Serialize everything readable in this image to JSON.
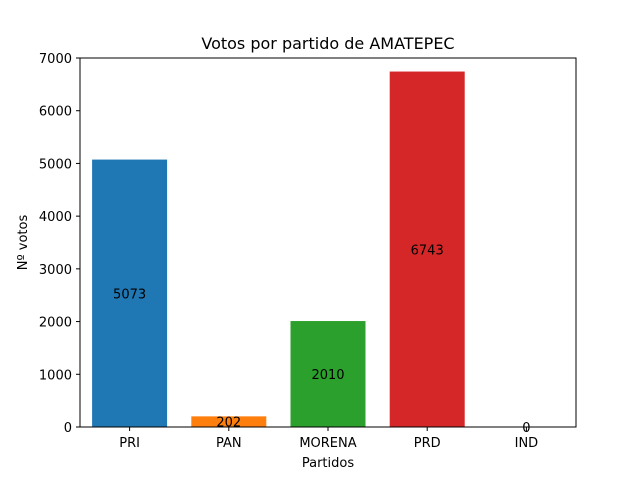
{
  "chart_data": {
    "type": "bar",
    "title": "Votos por partido de AMATEPEC",
    "xlabel": "Partidos",
    "ylabel": "Nº votos",
    "categories": [
      "PRI",
      "PAN",
      "MORENA",
      "PRD",
      "IND"
    ],
    "values": [
      5073,
      202,
      2010,
      6743,
      0
    ],
    "data_labels": [
      "5073",
      "202",
      "2010",
      "6743",
      "0"
    ],
    "colors": [
      "#1f77b4",
      "#ff7f0e",
      "#2ca02c",
      "#d62728",
      "#9467bd"
    ],
    "ylim": [
      0,
      7000
    ],
    "yticks": [
      0,
      1000,
      2000,
      3000,
      4000,
      5000,
      6000,
      7000
    ],
    "ytick_labels": [
      "0",
      "1000",
      "2000",
      "3000",
      "4000",
      "5000",
      "6000",
      "7000"
    ],
    "grid": false,
    "legend": "none"
  }
}
